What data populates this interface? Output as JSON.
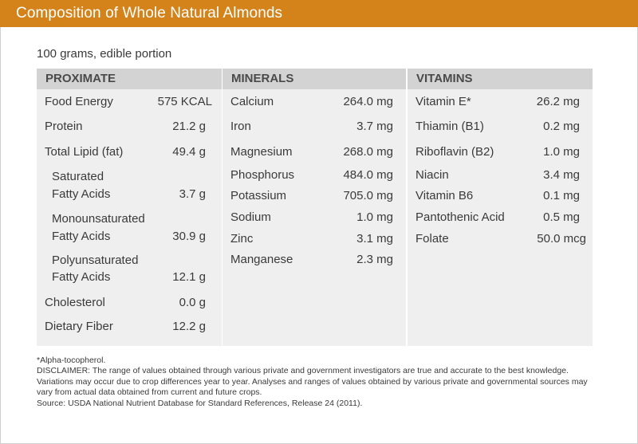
{
  "header": {
    "title": "Composition of Whole Natural Almonds"
  },
  "subtitle": "100 grams, edible portion",
  "proximate": {
    "heading": "PROXIMATE",
    "rows": [
      {
        "label": "Food Energy",
        "value": "575 KCAL"
      },
      {
        "label": "Protein",
        "value": "21.2 g"
      },
      {
        "label": "Total Lipid (fat)",
        "value": "49.4 g"
      },
      {
        "label": "Saturated",
        "label2": "Fatty Acids",
        "value": "3.7 g"
      },
      {
        "label": "Monounsaturated",
        "label2": "Fatty Acids",
        "value": "30.9 g"
      },
      {
        "label": "Polyunsaturated",
        "label2": "Fatty Acids",
        "value": "12.1 g"
      },
      {
        "label": "Cholesterol",
        "value": "0.0 g"
      },
      {
        "label": "Dietary Fiber",
        "value": "12.2 g"
      }
    ]
  },
  "minerals": {
    "heading": "MINERALS",
    "rows": [
      {
        "label": "Calcium",
        "value": "264.0 mg"
      },
      {
        "label": "Iron",
        "value": "3.7 mg"
      },
      {
        "label": "Magnesium",
        "value": "268.0 mg"
      },
      {
        "label": "Phosphorus",
        "value": "484.0 mg"
      },
      {
        "label": "Potassium",
        "value": "705.0 mg"
      },
      {
        "label": "Sodium",
        "value": "1.0 mg"
      },
      {
        "label": "Zinc",
        "value": "3.1 mg"
      },
      {
        "label": "Manganese",
        "value": "2.3 mg"
      }
    ]
  },
  "vitamins": {
    "heading": "VITAMINS",
    "rows": [
      {
        "label": "Vitamin E*",
        "value": "26.2 mg"
      },
      {
        "label": "Thiamin (B1)",
        "value": "0.2 mg"
      },
      {
        "label": "Riboflavin (B2)",
        "value": "1.0 mg"
      },
      {
        "label": "Niacin",
        "value": "3.4 mg"
      },
      {
        "label": "Vitamin B6",
        "value": "0.1 mg"
      },
      {
        "label": "Pantothenic Acid",
        "value": "0.5 mg"
      },
      {
        "label": "Folate",
        "value": "50.0 mcg"
      }
    ]
  },
  "footnotes": {
    "asterisk": "*Alpha-tocopherol.",
    "disclaimer": "DISCLAIMER: The range of values obtained through various private and government investigators are true and accurate to the best knowledge. Variations may occur due to crop differences year to year. Analyses and ranges of values obtained by various private and governmental sources may vary from actual data obtained from current and future crops.",
    "source": "Source: USDA National Nutrient Database for Standard References, Release 24 (2011)."
  },
  "colors": {
    "title_bar": "#d4821a",
    "column_bg": "#efefef",
    "header_bg": "#d3d3d3"
  }
}
